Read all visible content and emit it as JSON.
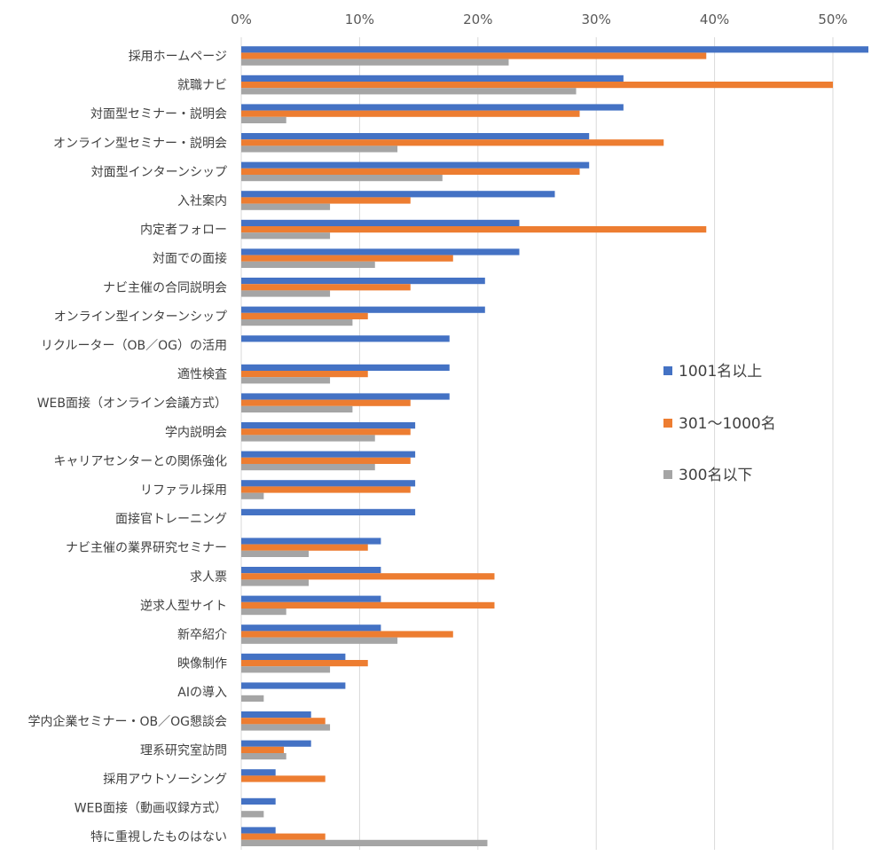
{
  "chart_data": {
    "type": "bar",
    "orientation": "horizontal",
    "x_ticks": [
      "0%",
      "10%",
      "20%",
      "30%",
      "40%",
      "50%"
    ],
    "xlim": [
      0,
      53
    ],
    "grid": true,
    "legend_position": "right",
    "categories": [
      "採用ホームページ",
      "就職ナビ",
      "対面型セミナー・説明会",
      "オンライン型セミナー・説明会",
      "対面型インターンシップ",
      "入社案内",
      "内定者フォロー",
      "対面での面接",
      "ナビ主催の合同説明会",
      "オンライン型インターンシップ",
      "リクルーター（OB／OG）の活用",
      "適性検査",
      "WEB面接（オンライン会議方式）",
      "学内説明会",
      "キャリアセンターとの関係強化",
      "リファラル採用",
      "面接官トレーニング",
      "ナビ主催の業界研究セミナー",
      "求人票",
      "逆求人型サイト",
      "新卒紹介",
      "映像制作",
      "AIの導入",
      "学内企業セミナー・OB／OG懇談会",
      "理系研究室訪問",
      "採用アウトソーシング",
      "WEB面接（動画収録方式）",
      "特に重視したものはない"
    ],
    "series": [
      {
        "name": "1001名以上",
        "color": "#4472C4",
        "values": [
          53.0,
          32.3,
          32.3,
          29.4,
          29.4,
          26.5,
          23.5,
          23.5,
          20.6,
          20.6,
          17.6,
          17.6,
          17.6,
          14.7,
          14.7,
          14.7,
          14.7,
          11.8,
          11.8,
          11.8,
          11.8,
          8.8,
          8.8,
          5.9,
          5.9,
          2.9,
          2.9,
          2.9
        ]
      },
      {
        "name": "301〜1000名",
        "color": "#ED7D31",
        "values": [
          39.3,
          50.0,
          28.6,
          35.7,
          28.6,
          14.3,
          39.3,
          17.9,
          14.3,
          10.7,
          0,
          10.7,
          14.3,
          14.3,
          14.3,
          14.3,
          0,
          10.7,
          21.4,
          21.4,
          17.9,
          10.7,
          0,
          7.1,
          3.6,
          7.1,
          0,
          7.1
        ]
      },
      {
        "name": "300名以下",
        "color": "#A5A5A5",
        "values": [
          22.6,
          28.3,
          3.8,
          13.2,
          17.0,
          7.5,
          7.5,
          11.3,
          7.5,
          9.4,
          0,
          7.5,
          9.4,
          11.3,
          11.3,
          1.9,
          0,
          5.7,
          5.7,
          3.8,
          13.2,
          7.5,
          1.9,
          7.5,
          3.8,
          0,
          1.9,
          20.8
        ]
      }
    ]
  }
}
